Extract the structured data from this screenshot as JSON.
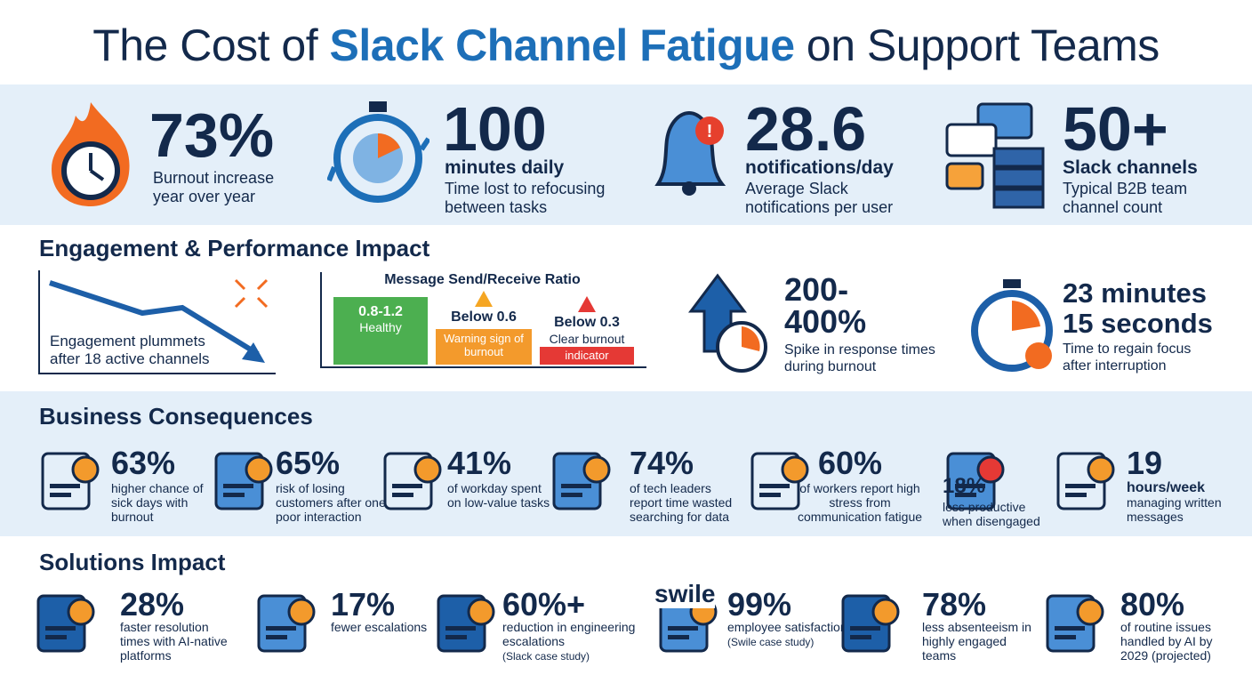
{
  "header": {
    "title_pre": "The Cost of ",
    "title_highlight": "Slack Channel Fatigue",
    "title_post": " on Support Teams"
  },
  "top_stats": [
    {
      "value": "73%",
      "label": "Burnout increase year over year"
    },
    {
      "value": "100",
      "sub": "minutes daily",
      "label": "Time lost to refocusing between tasks"
    },
    {
      "value": "28.6",
      "sub": "notifications/day",
      "label": "Average Slack notifications per user"
    },
    {
      "value": "50+",
      "sub": "Slack channels",
      "label": "Typical B2B team channel count"
    }
  ],
  "engagement": {
    "title": "Engagement & Performance Impact",
    "trend": "Engagement plummets after 18 active channels",
    "ratio": {
      "title": "Message Send/Receive Ratio",
      "bars": [
        {
          "range": "0.8-1.2",
          "label": "Healthy"
        },
        {
          "range": "Below 0.6",
          "label": "Warning sign of burnout"
        },
        {
          "range": "Below 0.3",
          "label": "Clear burnout",
          "inside": "indicator"
        }
      ]
    },
    "spike": {
      "value": "200-400%",
      "label": "Spike in response times during burnout"
    },
    "focus": {
      "value": "23 minutes 15 seconds",
      "label": "Time to regain focus after interruption"
    }
  },
  "business": {
    "title": "Business Consequences",
    "items": [
      {
        "value": "63%",
        "label": "higher chance of sick days with burnout"
      },
      {
        "value": "65%",
        "label": "risk of losing customers after one poor interaction"
      },
      {
        "value": "41%",
        "label": "of workday spent on low-value tasks"
      },
      {
        "value": "74%",
        "label": "of tech leaders report time wasted searching for data"
      },
      {
        "value": "60%",
        "label": "of workers report high stress from communication fatigue"
      },
      {
        "value": "18%",
        "label": "less productive when disengaged"
      },
      {
        "value": "19",
        "sub": "hours/week",
        "label": "managing written messages"
      }
    ]
  },
  "solutions": {
    "title": "Solutions Impact",
    "items": [
      {
        "value": "28%",
        "label": "faster resolution times with AI-native platforms"
      },
      {
        "value": "17%",
        "label": "fewer escalations"
      },
      {
        "value": "60%+",
        "label": "reduction in engineering escalations",
        "note": "(Slack case study)"
      },
      {
        "value": "99%",
        "logo": "swile",
        "label": "employee satisfaction",
        "note": "(Swile case study)"
      },
      {
        "value": "78%",
        "label": "less absenteeism in highly engaged teams"
      },
      {
        "value": "80%",
        "label": "of routine issues handled by AI by 2029 (projected)"
      }
    ]
  }
}
